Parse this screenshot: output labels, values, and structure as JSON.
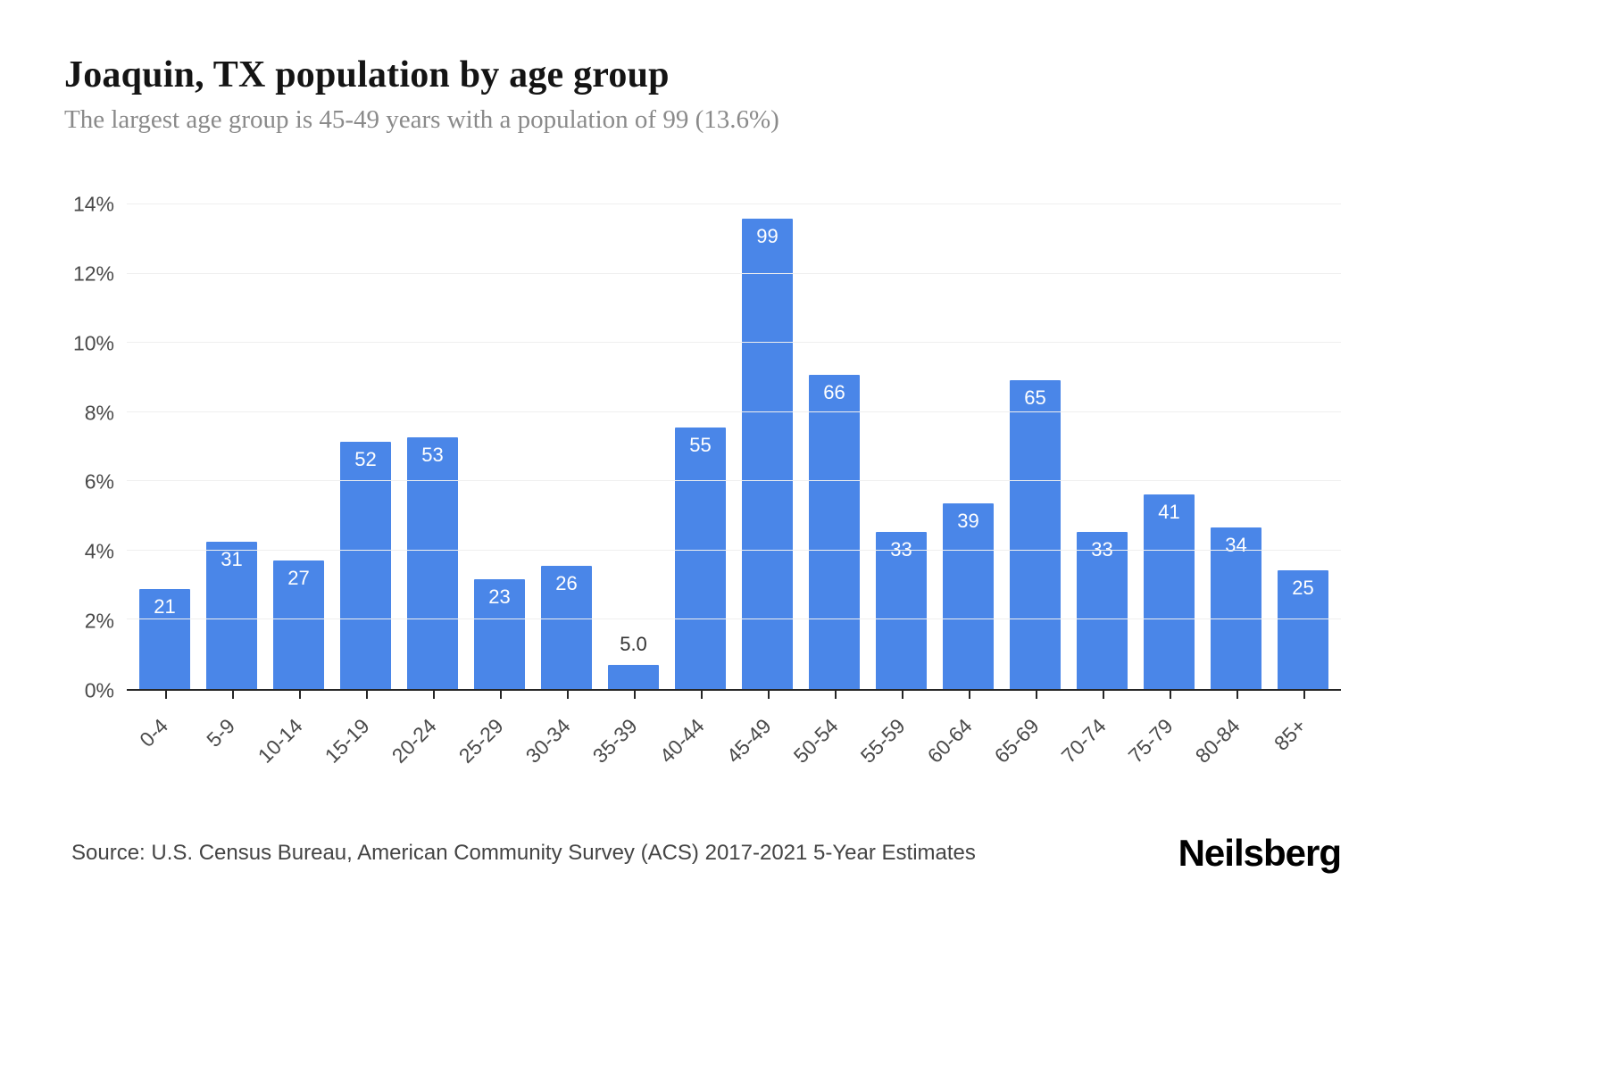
{
  "page": {
    "title": "Joaquin, TX population by age group",
    "subtitle": "The largest age group is 45-49 years with a population of 99 (13.6%)",
    "source": "Source: U.S. Census Bureau, American Community Survey (ACS) 2017-2021 5-Year Estimates",
    "logo": "Neilsberg"
  },
  "chart_data": {
    "type": "bar",
    "title": "Joaquin, TX population by age group",
    "subtitle": "The largest age group is 45-49 years with a population of 99 (13.6%)",
    "categories": [
      "0-4",
      "5-9",
      "10-14",
      "15-19",
      "20-24",
      "25-29",
      "30-34",
      "35-39",
      "40-44",
      "45-49",
      "50-54",
      "55-59",
      "60-64",
      "65-69",
      "70-74",
      "75-79",
      "80-84",
      "85+"
    ],
    "values": [
      21,
      31,
      27,
      52,
      53,
      23,
      26,
      5.0,
      55,
      99,
      66,
      33,
      39,
      65,
      33,
      41,
      34,
      25
    ],
    "value_labels": [
      "21",
      "31",
      "27",
      "52",
      "53",
      "23",
      "26",
      "5.0",
      "55",
      "99",
      "66",
      "33",
      "39",
      "65",
      "33",
      "41",
      "34",
      "25"
    ],
    "percentages": [
      2.88,
      4.26,
      3.71,
      7.14,
      7.28,
      3.16,
      3.57,
      0.69,
      7.55,
      13.6,
      9.07,
      4.53,
      5.36,
      8.93,
      4.53,
      5.63,
      4.67,
      3.43
    ],
    "xlabel": "",
    "ylabel": "",
    "ylim": [
      0,
      14
    ],
    "y_tick_values": [
      0,
      2,
      4,
      6,
      8,
      10,
      12,
      14
    ],
    "y_tick_labels": [
      "0%",
      "2%",
      "4%",
      "6%",
      "8%",
      "10%",
      "12%",
      "14%"
    ],
    "grid": true,
    "legend": false,
    "bar_color": "#4a86e8",
    "label_color_inside": "#ffffff",
    "label_color_outside": "#333333",
    "source": "Source: U.S. Census Bureau, American Community Survey (ACS) 2017-2021 5-Year Estimates"
  }
}
